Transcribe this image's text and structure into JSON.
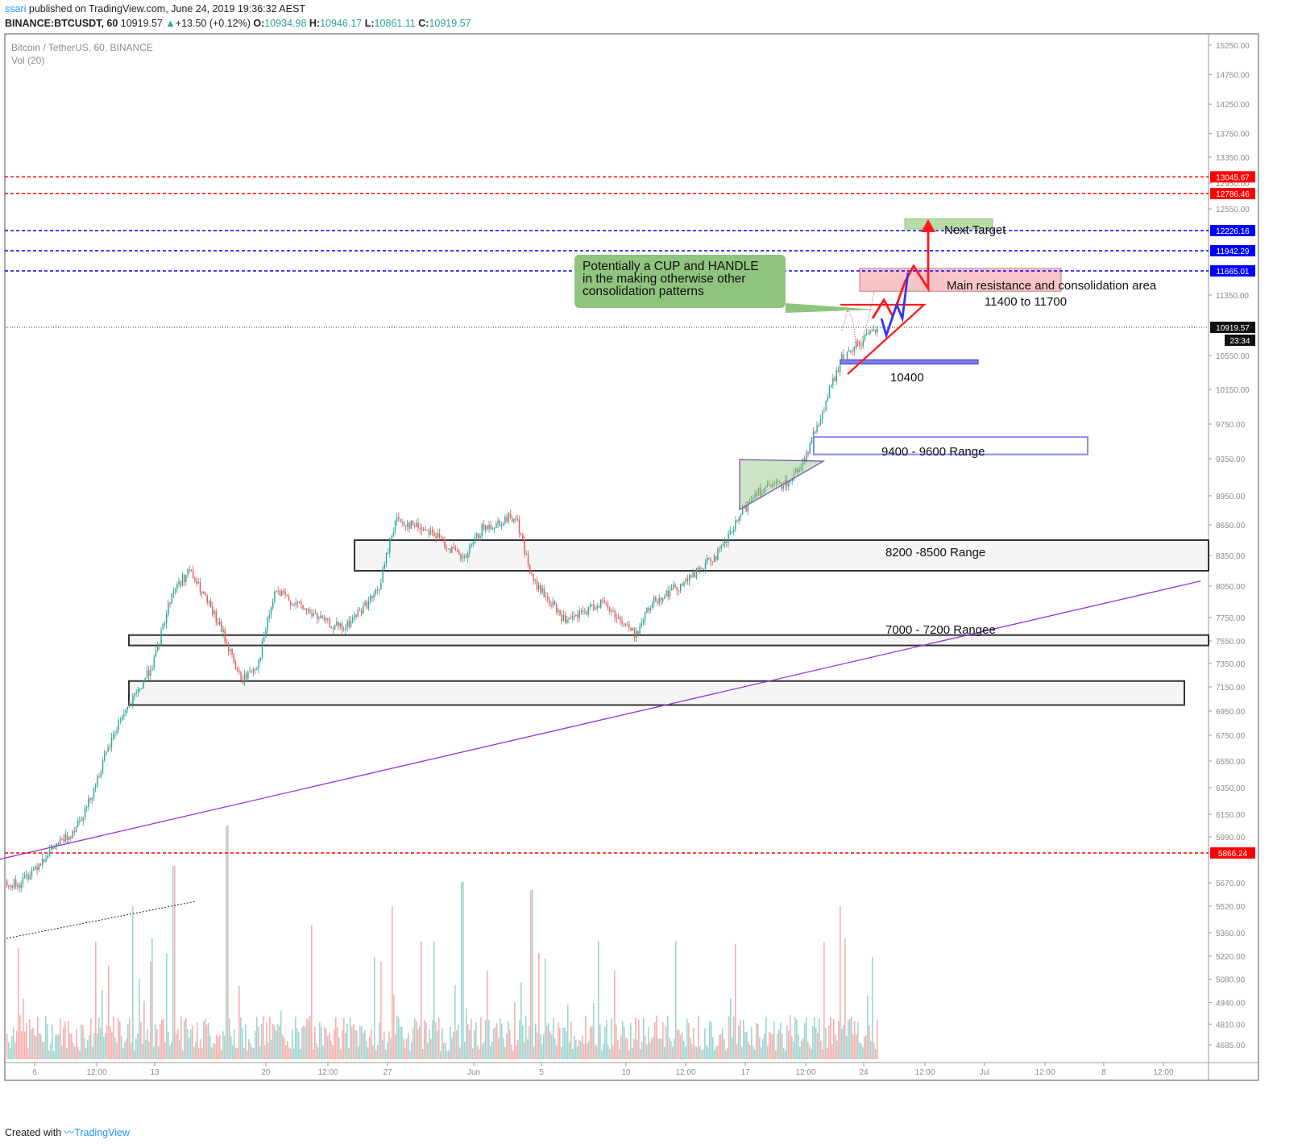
{
  "header": {
    "user": "ssari",
    "published": "published on TradingView.com, June 24, 2019 19:36:32 AEST",
    "symbol": "BINANCE:BTCUSDT, 60",
    "last": "10919.57",
    "arrow": "▲",
    "change": "+13.50 (+0.12%)",
    "o_label": "O:",
    "o_value": "10934.98",
    "h_label": "H:",
    "h_value": "10946.17",
    "l_label": "L:",
    "l_value": "10861.11",
    "c_label": "C:",
    "c_value": "10919.57"
  },
  "footer": {
    "created": "Created with",
    "brand": "TradingView"
  },
  "chart_data": {
    "type": "candlestick",
    "title": "Bitcoin / TetherUS, 60, BINANCE",
    "subtitle": "Vol (20)",
    "y_ticks": [
      "15250.00",
      "14750.00",
      "14250.00",
      "13750.00",
      "13350.00",
      "12950.00",
      "12550.00",
      "11350.00",
      "10550.00",
      "10150.00",
      "9750.00",
      "9350.00",
      "8950.00",
      "8650.00",
      "8350.00",
      "8050.00",
      "7750.00",
      "7550.00",
      "7350.00",
      "7150.00",
      "6950.00",
      "6750.00",
      "6550.00",
      "6350.00",
      "6150.00",
      "5990.00",
      "5670.00",
      "5520.00",
      "5360.00",
      "5220.00",
      "5080.00",
      "4940.00",
      "4810.00",
      "4685.00"
    ],
    "x_ticks": [
      "6",
      "12:00",
      "13",
      "20",
      "12:00",
      "27",
      "Jun",
      "5",
      "10",
      "12:00",
      "17",
      "12:00",
      "24",
      "12:00",
      "Jul",
      "12:00",
      "8",
      "12:00"
    ],
    "current_price": {
      "price": 10919.57,
      "label": "10919.57",
      "countdown": "23:34"
    },
    "price_lines": [
      {
        "price": 13045.67,
        "label": "13045.67",
        "color": "#ff0000"
      },
      {
        "price": 12786.46,
        "label": "12786.46",
        "color": "#ff0000"
      },
      {
        "price": 12226.16,
        "label": "12226.16",
        "color": "#0000ff"
      },
      {
        "price": 11942.29,
        "label": "11942.29",
        "color": "#0000ff"
      },
      {
        "price": 11665.01,
        "label": "11665.01",
        "color": "#0000ff"
      },
      {
        "price": 5866.24,
        "label": "5866.24",
        "color": "#ff0000"
      }
    ],
    "zones": [
      {
        "label": "Next Target",
        "low": 12250,
        "high": 12400
      },
      {
        "label": "Main resistance and consolidation area",
        "sublabel": "11400 to 11700",
        "low": 11400,
        "high": 11700
      },
      {
        "label": "10400",
        "low": 10450,
        "high": 10500
      },
      {
        "label": "9400 - 9600 Range",
        "low": 9400,
        "high": 9600
      },
      {
        "label": "8200 -8500 Range",
        "low": 8200,
        "high": 8500
      },
      {
        "label": "7000 - 7200 Rangee",
        "low": 7510,
        "high": 7600
      },
      {
        "label": "",
        "low": 7000,
        "high": 7200
      }
    ],
    "callout": {
      "lines": [
        "Potentially a CUP and HANDLE",
        "in the making otherwise other",
        "consolidation patterns"
      ],
      "color": "#8fc47f"
    },
    "trendline": {
      "from": {
        "date": "2019-05-03",
        "price": 5800
      },
      "to": {
        "date": "2019-07-13",
        "price": 8100
      }
    },
    "price_path": [
      {
        "d": "May 3",
        "p": 5800
      },
      {
        "d": "May 4",
        "p": 5700
      },
      {
        "d": "May 5",
        "p": 5650
      },
      {
        "d": "May 7",
        "p": 5900
      },
      {
        "d": "May 8",
        "p": 6000
      },
      {
        "d": "May 9",
        "p": 6200
      },
      {
        "d": "May 11",
        "p": 6900
      },
      {
        "d": "May 12",
        "p": 7100
      },
      {
        "d": "May 13",
        "p": 7400
      },
      {
        "d": "May 14",
        "p": 8000
      },
      {
        "d": "May 15",
        "p": 8200
      },
      {
        "d": "May 17",
        "p": 7600
      },
      {
        "d": "May 18",
        "p": 7200
      },
      {
        "d": "May 19",
        "p": 7350
      },
      {
        "d": "May 20",
        "p": 8000
      },
      {
        "d": "May 23",
        "p": 7700
      },
      {
        "d": "May 24",
        "p": 7650
      },
      {
        "d": "May 26",
        "p": 8000
      },
      {
        "d": "May 27",
        "p": 8700
      },
      {
        "d": "May 29",
        "p": 8600
      },
      {
        "d": "May 31",
        "p": 8300
      },
      {
        "d": "Jun 1",
        "p": 8600
      },
      {
        "d": "Jun 3",
        "p": 8750
      },
      {
        "d": "Jun 4",
        "p": 8100
      },
      {
        "d": "Jun 6",
        "p": 7700
      },
      {
        "d": "Jun 8",
        "p": 7900
      },
      {
        "d": "Jun 10",
        "p": 7600
      },
      {
        "d": "Jun 11",
        "p": 7900
      },
      {
        "d": "Jun 13",
        "p": 8100
      },
      {
        "d": "Jun 15",
        "p": 8400
      },
      {
        "d": "Jun 17",
        "p": 9000
      },
      {
        "d": "Jun 19",
        "p": 9100
      },
      {
        "d": "Jun 20",
        "p": 9400
      },
      {
        "d": "Jun 22",
        "p": 10500
      },
      {
        "d": "Jun 23",
        "p": 10700
      },
      {
        "d": "Jun 24",
        "p": 10919
      }
    ],
    "volume_note": "volume histogram (Vol 20) shown along bottom"
  }
}
